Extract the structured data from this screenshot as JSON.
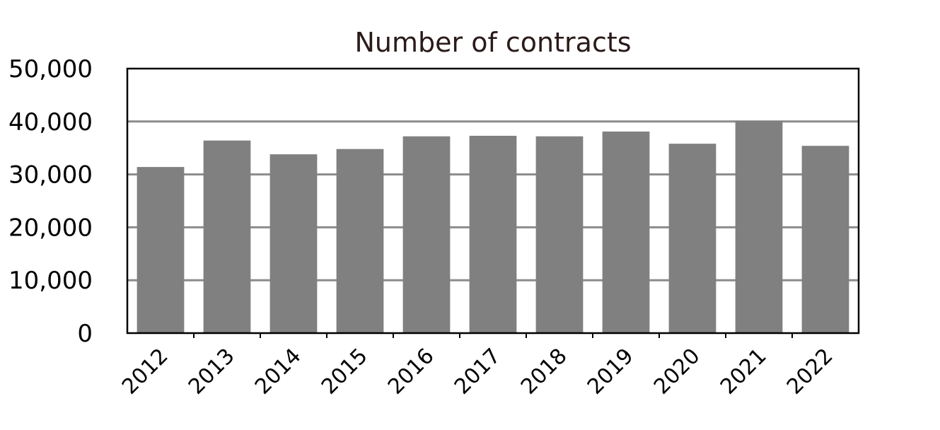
{
  "colors": {
    "bar": "#808080",
    "gridline": "#8c8c8c",
    "frame": "#000000",
    "title": "#2b1a1a"
  },
  "chart_data": {
    "type": "bar",
    "title": "Number of contracts",
    "xlabel": "",
    "ylabel": "",
    "categories": [
      "2012",
      "2013",
      "2014",
      "2015",
      "2016",
      "2017",
      "2018",
      "2019",
      "2020",
      "2021",
      "2022"
    ],
    "values": [
      31400,
      36400,
      33800,
      34800,
      37200,
      37300,
      37200,
      38100,
      35800,
      40100,
      35400
    ],
    "ylim": [
      0,
      50000
    ],
    "yticks": [
      0,
      10000,
      20000,
      30000,
      40000,
      50000
    ],
    "ytick_labels": [
      "0",
      "10,000",
      "20,000",
      "30,000",
      "40,000",
      "50,000"
    ],
    "grid": true,
    "legend": "none"
  }
}
